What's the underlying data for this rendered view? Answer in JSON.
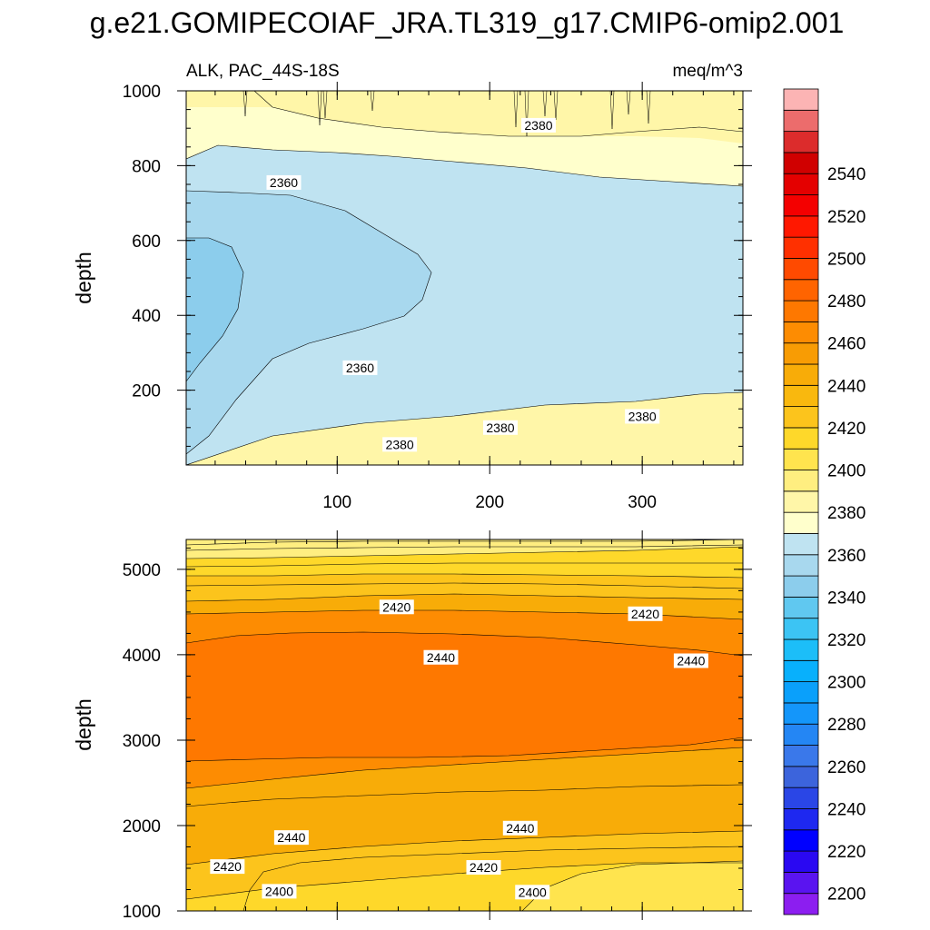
{
  "chart_data": {
    "type": "contour",
    "title": "g.e21.GOMIPECOIAF_JRA.TL319_g17.CMIP6-omip2.001",
    "subtitle_left": "ALK, PAC_44S-18S",
    "subtitle_right": "meq/m^3",
    "x_range": [
      1,
      366
    ],
    "x_ticks": [
      100,
      200,
      300
    ],
    "x_tick_labels": [
      "100",
      "200",
      "300"
    ],
    "top_panel": {
      "ylabel": "depth",
      "ylim": [
        1000,
        0
      ],
      "y_ticks": [
        200,
        400,
        600,
        800,
        1000
      ],
      "y_tick_labels": [
        "200",
        "400",
        "600",
        "800",
        "1000"
      ],
      "contour_labels": [
        {
          "text": "2380",
          "x": 141,
          "y": 55
        },
        {
          "text": "2380",
          "x": 207,
          "y": 100
        },
        {
          "text": "2380",
          "x": 300,
          "y": 130
        },
        {
          "text": "2360",
          "x": 115,
          "y": 260
        },
        {
          "text": "2360",
          "x": 65,
          "y": 755
        },
        {
          "text": "2380",
          "x": 232,
          "y": 908
        }
      ]
    },
    "bottom_panel": {
      "ylabel": "depth",
      "ylim": [
        5350,
        1000
      ],
      "y_ticks": [
        1000,
        2000,
        3000,
        4000,
        5000
      ],
      "y_tick_labels": [
        "1000",
        "2000",
        "3000",
        "4000",
        "5000"
      ],
      "contour_labels": [
        {
          "text": "2400",
          "x": 62,
          "y": 1230
        },
        {
          "text": "2400",
          "x": 228,
          "y": 1220
        },
        {
          "text": "2420",
          "x": 28,
          "y": 1520
        },
        {
          "text": "2420",
          "x": 196,
          "y": 1510
        },
        {
          "text": "2440",
          "x": 70,
          "y": 1860
        },
        {
          "text": "2440",
          "x": 220,
          "y": 1970
        },
        {
          "text": "2440",
          "x": 168,
          "y": 3970
        },
        {
          "text": "2440",
          "x": 332,
          "y": 3930
        },
        {
          "text": "2420",
          "x": 139,
          "y": 4560
        },
        {
          "text": "2420",
          "x": 302,
          "y": 4480
        }
      ]
    },
    "colorbar": {
      "levels_labeled": [
        "2200",
        "2220",
        "2240",
        "2260",
        "2280",
        "2300",
        "2320",
        "2340",
        "2360",
        "2380",
        "2400",
        "2420",
        "2440",
        "2460",
        "2480",
        "2500",
        "2520",
        "2540"
      ],
      "colors": [
        "#8c1ef0",
        "#5a14f0",
        "#2a08f2",
        "#0000ff",
        "#1e28f0",
        "#2a46e6",
        "#3c64dc",
        "#3a78ea",
        "#2486f4",
        "#1496fa",
        "#0aa0fb",
        "#08b0fc",
        "#1cbef8",
        "#3cc4f4",
        "#60c8f0",
        "#8ccdec",
        "#a8d8ee",
        "#bfe3f1",
        "#ffffcc",
        "#fff6a8",
        "#ffee80",
        "#ffe44e",
        "#fed82a",
        "#fcc41c",
        "#f9b80e",
        "#f8ac08",
        "#f89c04",
        "#fd8c02",
        "#fe7800",
        "#ff6400",
        "#ff4a00",
        "#ff3000",
        "#ff1800",
        "#f40000",
        "#e40000",
        "#d00000",
        "#dc2c2c",
        "#ec6c6c",
        "#fcb4b4"
      ]
    }
  }
}
